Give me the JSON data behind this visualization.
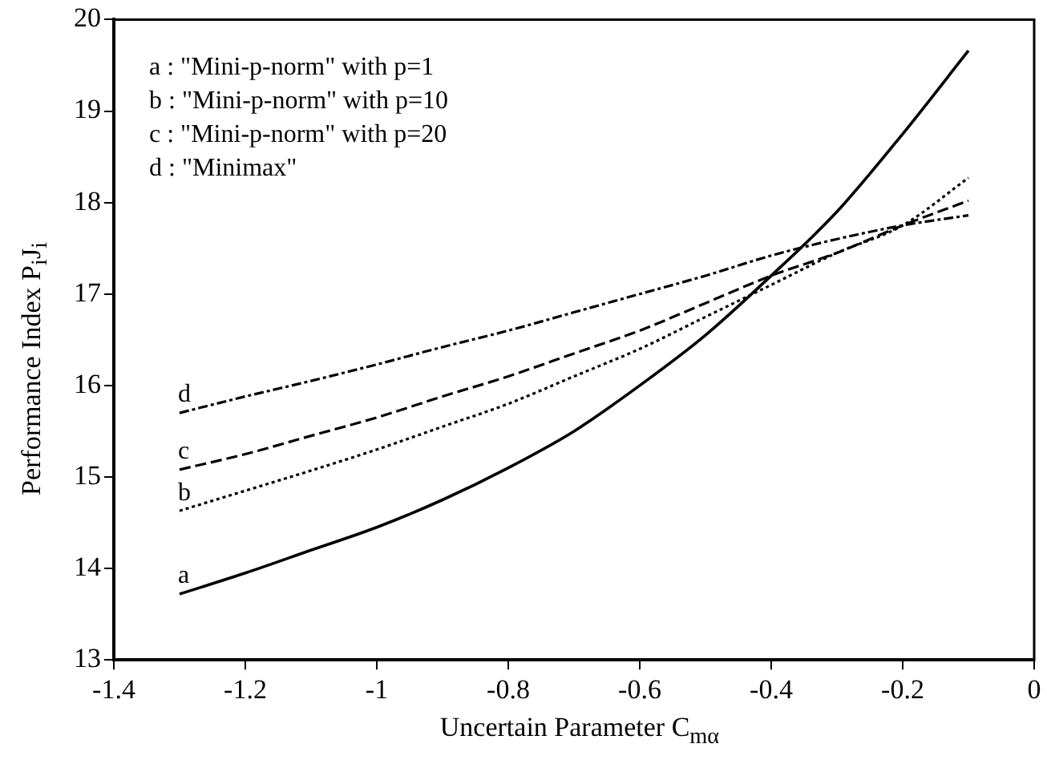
{
  "chart_data": {
    "type": "line",
    "xlabel": "Uncertain Parameter  C$_{mα}$",
    "ylabel": "Performance Index  P$_{i}$J$_{i}$",
    "x": [
      -1.3,
      -1.2,
      -1.1,
      -1.0,
      -0.9,
      -0.8,
      -0.7,
      -0.6,
      -0.5,
      -0.4,
      -0.3,
      -0.2,
      -0.1
    ],
    "xlim": [
      -1.4,
      0
    ],
    "xticks": [
      -1.4,
      -1.2,
      -1,
      -0.8,
      -0.6,
      -0.4,
      -0.2,
      0
    ],
    "ylim": [
      13,
      20
    ],
    "yticks": [
      13,
      14,
      15,
      16,
      17,
      18,
      19,
      20
    ],
    "series": [
      {
        "name": "a",
        "color": "#000000",
        "line_style": "solid",
        "values": [
          13.72,
          13.95,
          14.2,
          14.45,
          14.75,
          15.1,
          15.5,
          16.0,
          16.55,
          17.2,
          17.9,
          18.75,
          19.66
        ]
      },
      {
        "name": "b",
        "color": "#000000",
        "line_style": "dotted",
        "values": [
          14.63,
          14.85,
          15.07,
          15.3,
          15.55,
          15.8,
          16.1,
          16.4,
          16.75,
          17.1,
          17.45,
          17.75,
          18.27
        ]
      },
      {
        "name": "c",
        "color": "#000000",
        "line_style": "dashed",
        "values": [
          15.08,
          15.25,
          15.45,
          15.65,
          15.88,
          16.1,
          16.35,
          16.6,
          16.9,
          17.2,
          17.45,
          17.75,
          18.02
        ]
      },
      {
        "name": "d",
        "color": "#000000",
        "line_style": "dashed",
        "values": [
          15.7,
          15.88,
          16.05,
          16.23,
          16.42,
          16.6,
          16.8,
          17.0,
          17.2,
          17.42,
          17.6,
          17.75,
          17.86
        ]
      }
    ],
    "annotations": [
      "a : \"Mini-p-norm\" with p=1",
      "b : \"Mini-p-norm\" with p=10",
      "c : \"Mini-p-norm\" with p=20",
      "d : \"Minimax\""
    ],
    "grid": false,
    "legend": false,
    "marker": "none"
  }
}
